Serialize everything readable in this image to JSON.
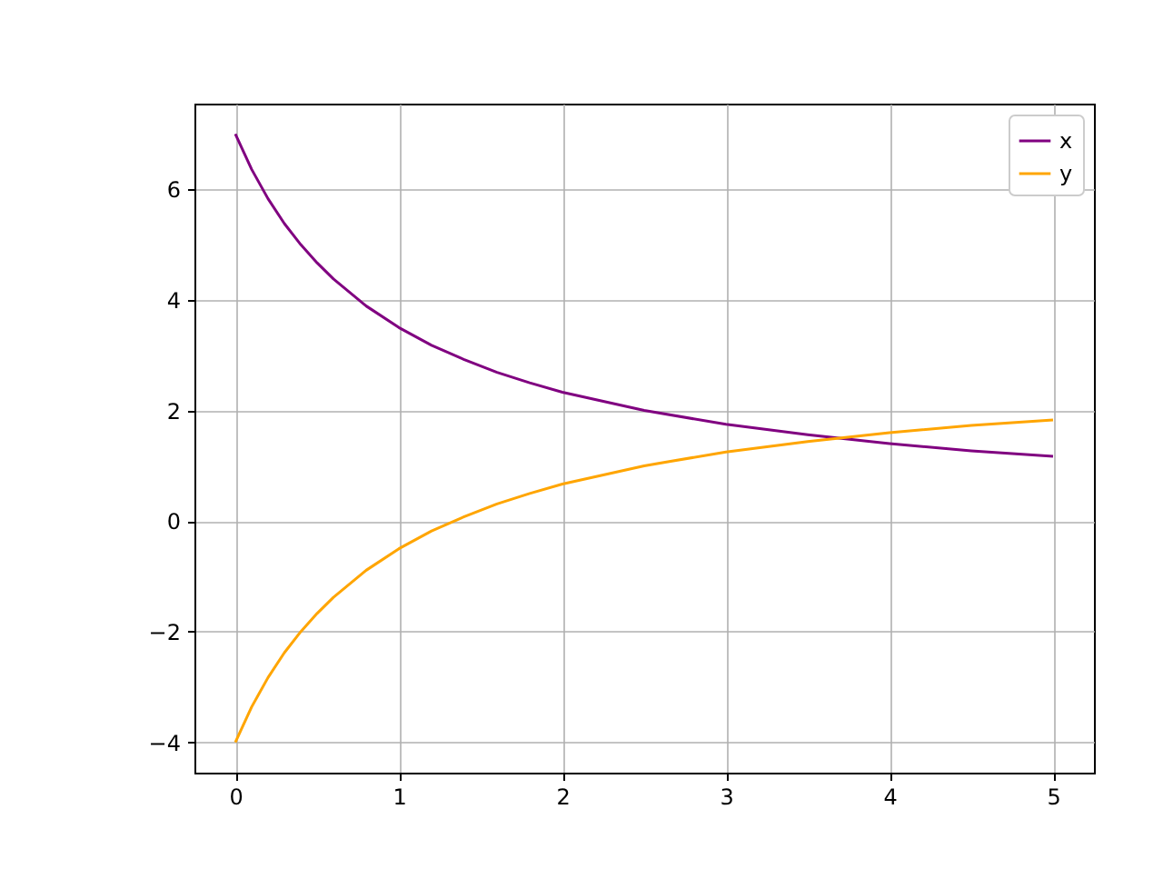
{
  "chart_data": {
    "type": "line",
    "x": [
      0,
      0.1,
      0.2,
      0.3,
      0.4,
      0.5,
      0.6,
      0.8,
      1,
      1.2,
      1.4,
      1.6,
      1.8,
      2,
      2.5,
      3,
      3.5,
      4,
      4.5,
      5
    ],
    "series": [
      {
        "name": "x",
        "color": "#800080",
        "values": [
          7,
          6.36,
          5.83,
          5.38,
          5,
          4.67,
          4.38,
          3.89,
          3.5,
          3.18,
          2.92,
          2.69,
          2.5,
          2.33,
          2,
          1.75,
          1.56,
          1.4,
          1.27,
          1.17
        ]
      },
      {
        "name": "y",
        "color": "#ffa500",
        "values": [
          -4,
          -3.36,
          -2.83,
          -2.38,
          -2,
          -1.67,
          -1.38,
          -0.89,
          -0.5,
          -0.18,
          0.08,
          0.31,
          0.5,
          0.67,
          1,
          1.25,
          1.44,
          1.6,
          1.73,
          1.83
        ]
      }
    ],
    "xlim": [
      -0.25,
      5.25
    ],
    "xticks": [
      0,
      1,
      2,
      3,
      4,
      5
    ],
    "ylim": [
      -4.55,
      7.55
    ],
    "yticks": [
      -4,
      -2,
      0,
      2,
      4,
      6
    ],
    "grid": true,
    "legend": "top right"
  }
}
